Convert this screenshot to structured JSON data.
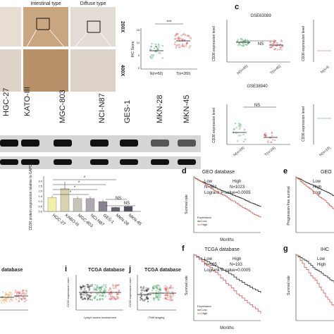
{
  "panel_letters": {
    "c": "c",
    "d": "d",
    "e": "e",
    "f": "f",
    "g": "g",
    "i": "i",
    "j": "j"
  },
  "ihc": {
    "headers": [
      "Intestinal type",
      "Diffuse type"
    ],
    "magnifications": [
      "200X",
      "400X"
    ],
    "score_plot": {
      "ylabel": "IHC Score",
      "categories": [
        "N(n=50)",
        "T(n=280)"
      ],
      "significance": "***",
      "yticks": [
        "0",
        "5",
        "10",
        "15"
      ]
    }
  },
  "western": {
    "cell_lines": [
      "KATO-III",
      "MGC-803",
      "NCI-N87",
      "GES-1",
      "MKN-28",
      "MKN-45"
    ],
    "partial_label": "HGC-27"
  },
  "bar_chart": {
    "ylabel": "CD36 protein expression relative to GAPDH",
    "yticks": [
      "0.0",
      "0.5",
      "1.0",
      "1.5",
      "2.0",
      "2.5",
      "3.0"
    ],
    "sig": [
      "*",
      "*",
      "*",
      "*",
      "NS",
      "NS"
    ]
  },
  "geo_plots": [
    {
      "title": "GSE63089",
      "ylabel": "CD36 expression level",
      "ns": "NS",
      "categories": [
        "N(n=45)",
        "T(n=45)"
      ],
      "yticks": [
        "0",
        "2",
        "4",
        "6",
        "8",
        "10",
        "12"
      ]
    },
    {
      "title": "GSE38940",
      "ylabel": "CD36 expression level",
      "ns": "NS",
      "categories": [
        "N(n=24)",
        "T(n=24)"
      ],
      "yticks": [
        "0.0",
        "0.5",
        "1.0",
        "1.5"
      ]
    }
  ],
  "geo_right_partial": {
    "ylabel": "CD36 expression level",
    "categories": [
      "N(n=5",
      "N(n=10)"
    ]
  },
  "survival_d": {
    "title": "GEO database",
    "legend_low": "Low",
    "legend_high": "High",
    "n_low": "N=381",
    "n_high": "N=1023",
    "logrank": "Logrank P-value=0.0005",
    "ylabel": "Survival rate",
    "xlabel": "Months",
    "exp_label": "Expression",
    "exp_low": "Low",
    "exp_high": "High"
  },
  "survival_e": {
    "title": "GEO",
    "ylabel": "Progression-free survival",
    "legend_low": "Low",
    "legend_high": "High",
    "logrank": "Logr"
  },
  "survival_f": {
    "title": "TCGA database",
    "legend_low": "Low",
    "legend_high": "High",
    "n_low": "N=185",
    "n_high": "N=193",
    "logrank": "Logrank P-value=0.0005",
    "ylabel": "Survival rate",
    "xlabel": "Months",
    "exp_label": "Expression",
    "exp_low": "Low",
    "exp_high": "High"
  },
  "survival_g": {
    "title": "IHC",
    "ylabel": "Survival rate",
    "legend_low": "Low",
    "legend_high": "High"
  },
  "tcga_h": {
    "title": "database"
  },
  "tcga_i": {
    "title": "TCGA database",
    "ylabel": "CD36 expression Level",
    "xlabel": "Lymph nodes involvement"
  },
  "tcga_j": {
    "title": "TCGA database",
    "ylabel": "CD36 expression Level",
    "xlabel": "TNM staging"
  },
  "colors": {
    "red": "#d9534f",
    "green": "#3aa05a",
    "black": "#222222",
    "gray": "#777777",
    "teal": "#4caf50",
    "orange": "#e8a040",
    "purple": "#7b5ea7"
  }
}
